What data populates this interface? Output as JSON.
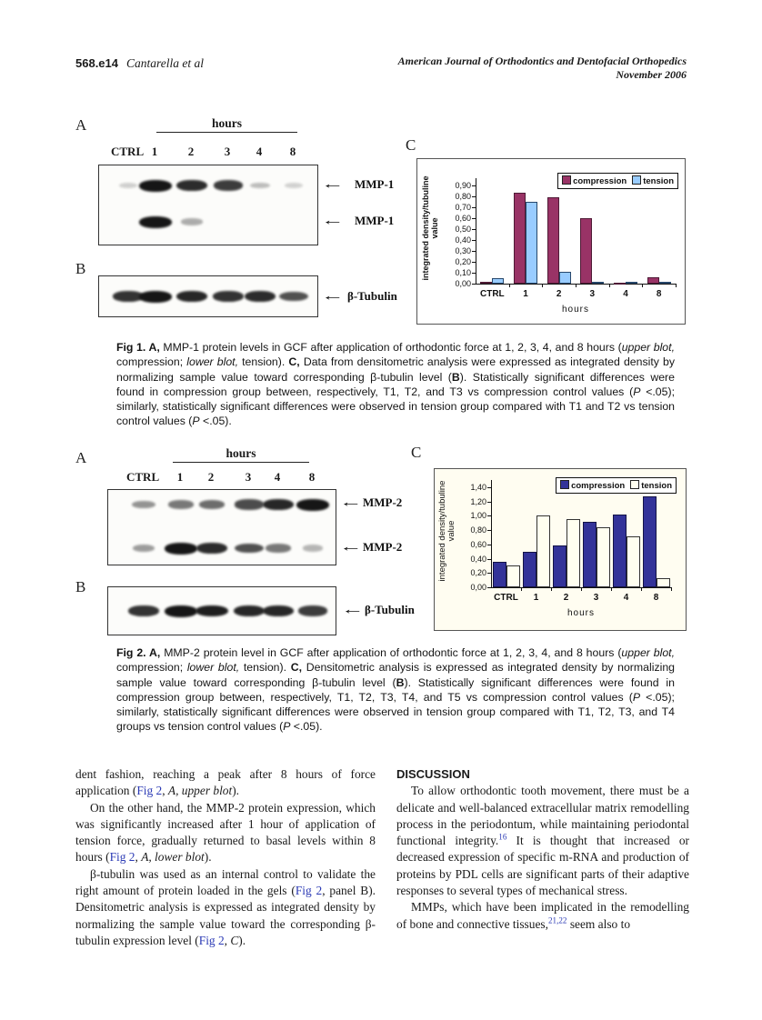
{
  "header": {
    "page_number": "568.e14",
    "authors": "Cantarella et al",
    "journal_line1": "American Journal of Orthodontics and Dentofacial Orthopedics",
    "journal_line2": "November 2006"
  },
  "icons": {
    "left_arrow": "←"
  },
  "fig1": {
    "panel_a": "A",
    "panel_b": "B",
    "panel_c": "C",
    "hours_label": "hours",
    "lanes": [
      "CTRL",
      "1",
      "2",
      "3",
      "4",
      "8"
    ],
    "blot_a": {
      "upper_label": "MMP-1",
      "lower_label": "MMP-1",
      "upper_intensities": [
        0.05,
        1,
        0.88,
        0.8,
        0.14,
        0.03
      ],
      "lower_intensities": [
        0,
        1,
        0.22,
        0,
        0,
        0
      ]
    },
    "blot_b": {
      "label": "β-Tubulin",
      "intensities": [
        0.85,
        1,
        0.9,
        0.85,
        0.88,
        0.7
      ]
    },
    "chart_data": {
      "type": "bar",
      "categories": [
        "CTRL",
        "1",
        "2",
        "3",
        "4",
        "8"
      ],
      "series": [
        {
          "name": "compression",
          "color": "#993366",
          "border_color": "#4f1b36",
          "values": [
            0.02,
            0.83,
            0.79,
            0.6,
            0.01,
            0.06
          ]
        },
        {
          "name": "tension",
          "color": "#99ccff",
          "border_color": "#27476b",
          "values": [
            0.05,
            0.75,
            0.11,
            0.02,
            0.02,
            0.02
          ]
        }
      ],
      "xlabel": "hours",
      "ylabel": "integrated density/tubuline value",
      "ylim": [
        0,
        0.9
      ],
      "ytick_labels": [
        "0,00",
        "0,10",
        "0,20",
        "0,30",
        "0,40",
        "0,50",
        "0,60",
        "0,70",
        "0,80",
        "0,90"
      ],
      "legend_position": "top-right",
      "grid": false
    },
    "caption_segments": [
      {
        "text": "Fig 1.  A,",
        "style": "b"
      },
      {
        "text": " MMP-1 protein levels in GCF after application of orthodontic force at 1, 2, 3, 4, and 8 hours ("
      },
      {
        "text": "upper blot,",
        "style": "i"
      },
      {
        "text": " compression; "
      },
      {
        "text": "lower blot,",
        "style": "i"
      },
      {
        "text": " tension). "
      },
      {
        "text": "C,",
        "style": "b"
      },
      {
        "text": " Data from densitometric analysis were expressed as integrated density by normalizing sample value toward corresponding β-tubulin level ("
      },
      {
        "text": "B",
        "style": "b"
      },
      {
        "text": "). Statistically significant differences were found in compression group between, respectively, T1, T2, and T3 vs compression control values ("
      },
      {
        "text": "P",
        "style": "i"
      },
      {
        "text": " <.05); similarly, statistically significant differences were observed in tension group compared with T1 and T2 vs tension control values ("
      },
      {
        "text": "P",
        "style": "i"
      },
      {
        "text": " <.05)."
      }
    ]
  },
  "fig2": {
    "panel_a": "A",
    "panel_b": "B",
    "panel_c": "C",
    "hours_label": "hours",
    "lanes": [
      "CTRL",
      "1",
      "2",
      "3",
      "4",
      "8"
    ],
    "blot_a": {
      "upper_label": "MMP-2",
      "lower_label": "MMP-2",
      "upper_intensities": [
        0.35,
        0.5,
        0.55,
        0.72,
        0.9,
        1
      ],
      "lower_intensities": [
        0.3,
        1,
        0.88,
        0.7,
        0.5,
        0.18
      ]
    },
    "blot_b": {
      "label": "β-Tubulin",
      "intensities": [
        0.85,
        1,
        0.95,
        0.9,
        0.9,
        0.8
      ]
    },
    "chart_data": {
      "type": "bar",
      "categories": [
        "CTRL",
        "1",
        "2",
        "3",
        "4",
        "8"
      ],
      "series": [
        {
          "name": "compression",
          "color": "#333399",
          "border_color": "#131347",
          "values": [
            0.35,
            0.5,
            0.58,
            0.92,
            1.02,
            1.27
          ]
        },
        {
          "name": "tension",
          "color": "#fffff0",
          "border_color": "#333333",
          "values": [
            0.3,
            1.0,
            0.95,
            0.84,
            0.71,
            0.13
          ]
        }
      ],
      "xlabel": "hours",
      "ylabel": "integrated density/tubuline value",
      "ylim": [
        0,
        1.4
      ],
      "ytick_labels": [
        "0,00",
        "0,20",
        "0,40",
        "0,60",
        "0,80",
        "1,00",
        "1,20",
        "1,40"
      ],
      "legend_position": "top-right",
      "grid": false
    },
    "caption_segments": [
      {
        "text": "Fig 2.  A,",
        "style": "b"
      },
      {
        "text": " MMP-2 protein level in GCF after application of orthodontic force at 1, 2, 3, 4, and 8 hours ("
      },
      {
        "text": "upper blot,",
        "style": "i"
      },
      {
        "text": " compression; "
      },
      {
        "text": "lower blot,",
        "style": "i"
      },
      {
        "text": " tension). "
      },
      {
        "text": "C,",
        "style": "b"
      },
      {
        "text": " Densitometric analysis is expressed as integrated density by normalizing sample value toward corresponding β-tubulin level ("
      },
      {
        "text": "B",
        "style": "b"
      },
      {
        "text": "). Statistically significant differences were found in compression group between, respectively, T1, T2, T3, T4, and T5 vs compression control values ("
      },
      {
        "text": "P",
        "style": "i"
      },
      {
        "text": " <.05); similarly, statistically significant differences were observed in tension group compared with T1, T2, T3, and T4 groups vs tension control values ("
      },
      {
        "text": "P",
        "style": "i"
      },
      {
        "text": " <.05)."
      }
    ]
  },
  "body": {
    "left_paragraphs": [
      {
        "segments": [
          {
            "text": "dent fashion, reaching a peak after 8 hours of force application ("
          },
          {
            "text": "Fig 2",
            "style": "link"
          },
          {
            "text": ", "
          },
          {
            "text": "A, upper blot",
            "style": "i"
          },
          {
            "text": ")."
          }
        ]
      },
      {
        "segments": [
          {
            "text": "On the other hand, the MMP-2 protein expression, which was significantly increased after 1 hour of application of tension force, gradually returned to basal levels within 8 hours ("
          },
          {
            "text": "Fig 2",
            "style": "link"
          },
          {
            "text": ", "
          },
          {
            "text": "A, lower blot",
            "style": "i"
          },
          {
            "text": ")."
          }
        ]
      },
      {
        "segments": [
          {
            "text": "β-tubulin was used as an internal control to validate the right amount of protein loaded in the gels ("
          },
          {
            "text": "Fig 2",
            "style": "link"
          },
          {
            "text": ", panel B). Densitometric analysis is expressed as integrated density by normalizing the sample value toward the corresponding β-tubulin expression level ("
          },
          {
            "text": "Fig 2",
            "style": "link"
          },
          {
            "text": ", "
          },
          {
            "text": "C",
            "style": "i"
          },
          {
            "text": ")."
          }
        ]
      }
    ],
    "discussion_heading": "DISCUSSION",
    "right_paragraphs": [
      {
        "segments": [
          {
            "text": "To allow orthodontic tooth movement, there must be a delicate and well-balanced extracellular matrix remodelling process in the periodontum, while maintaining periodontal functional integrity."
          },
          {
            "text": "16",
            "style": "sup"
          },
          {
            "text": " It is thought that increased or decreased expression of specific m-RNA and production of proteins by PDL cells are significant parts of their adaptive responses to several types of mechanical stress."
          }
        ]
      },
      {
        "segments": [
          {
            "text": "MMPs, which have been implicated in the remodelling of bone and connective tissues,"
          },
          {
            "text": "21,22",
            "style": "sup"
          },
          {
            "text": " seem also to"
          }
        ]
      }
    ]
  }
}
